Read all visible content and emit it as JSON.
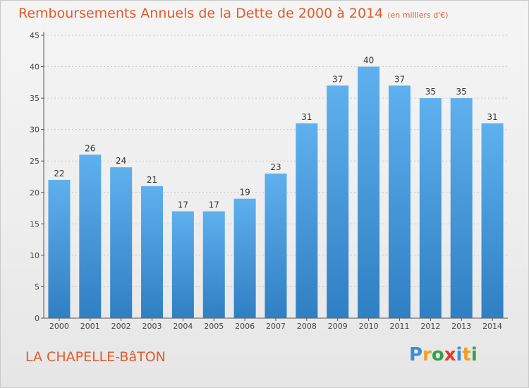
{
  "chart_data": {
    "type": "bar",
    "title": "Remboursements Annuels de la Dette de 2000 à 2014",
    "unit_note": "(en milliers d'€)",
    "categories": [
      "2000",
      "2001",
      "2002",
      "2003",
      "2004",
      "2005",
      "2006",
      "2007",
      "2008",
      "2009",
      "2010",
      "2011",
      "2012",
      "2013",
      "2014"
    ],
    "values": [
      22,
      26,
      24,
      21,
      17,
      17,
      19,
      23,
      31,
      37,
      40,
      37,
      35,
      35,
      31
    ],
    "ylim": [
      0,
      45
    ],
    "yticks": [
      0,
      5,
      10,
      15,
      20,
      25,
      30,
      35,
      40,
      45
    ],
    "xlabel": "",
    "ylabel": "",
    "bar_color_top": "#5fb0ee",
    "bar_color_bottom": "#2f7fc3"
  },
  "footer": {
    "place": "LA CHAPELLE-BâTON"
  },
  "logo": {
    "letters": [
      "P",
      "r",
      "o",
      "x",
      "i",
      "t",
      "i"
    ],
    "colors": [
      "#3a8fd0",
      "#f0a020",
      "#2fa24a",
      "#e03a2a",
      "#3a8fd0",
      "#f0a020",
      "#2fa24a"
    ]
  }
}
